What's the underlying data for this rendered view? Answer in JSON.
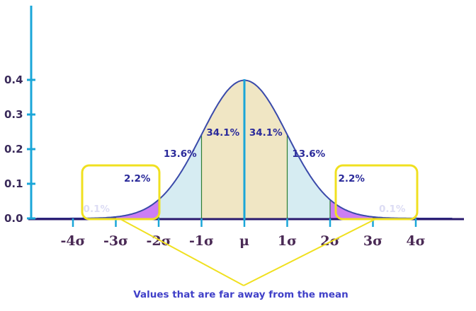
{
  "chart_data": {
    "type": "area",
    "title": "",
    "xlabel": "",
    "ylabel": "",
    "mean": 0,
    "sd": 1,
    "xlim": [
      -4.85,
      4.85
    ],
    "ylim": [
      0,
      0.4
    ],
    "y_ticks": [
      {
        "value": 0.4,
        "label": "0.4"
      },
      {
        "value": 0.3,
        "label": "0.3"
      },
      {
        "value": 0.2,
        "label": "0.2"
      },
      {
        "value": 0.1,
        "label": "0.1"
      },
      {
        "value": 0.0,
        "label": "0.0"
      }
    ],
    "x_ticks": [
      {
        "value": -4,
        "label": "-4σ"
      },
      {
        "value": -3,
        "label": "-3σ"
      },
      {
        "value": -2,
        "label": "-2σ"
      },
      {
        "value": -1,
        "label": "-1σ"
      },
      {
        "value": 0,
        "label": "μ"
      },
      {
        "value": 1,
        "label": "1σ"
      },
      {
        "value": 2,
        "label": "2σ"
      },
      {
        "value": 3,
        "label": "3σ"
      },
      {
        "value": 4,
        "label": "4σ"
      }
    ],
    "regions": [
      {
        "from": -4.85,
        "to": -3,
        "label": "0.1%",
        "value": 0.1,
        "color": "#5a1a6e"
      },
      {
        "from": -3,
        "to": -2,
        "label": "2.2%",
        "value": 2.2,
        "color": "#cc7ef4"
      },
      {
        "from": -2,
        "to": -1,
        "label": "13.6%",
        "value": 13.6,
        "color": "#d6ecf2"
      },
      {
        "from": -1,
        "to": 0,
        "label": "34.1%",
        "value": 34.1,
        "color": "#f0e6c4"
      },
      {
        "from": 0,
        "to": 1,
        "label": "34.1%",
        "value": 34.1,
        "color": "#f0e6c4"
      },
      {
        "from": 1,
        "to": 2,
        "label": "13.6%",
        "value": 13.6,
        "color": "#d6ecf2"
      },
      {
        "from": 2,
        "to": 3,
        "label": "2.2%",
        "value": 2.2,
        "color": "#cc7ef4"
      },
      {
        "from": 3,
        "to": 4.85,
        "label": "0.1%",
        "value": 0.1,
        "color": "#5a1a6e"
      }
    ],
    "annotation": "Values that are far away from the mean",
    "colors": {
      "axis": "#1aa6d8",
      "baseline": "#2a1a6e",
      "curve": "#3a4aaa",
      "divider": "#2e7d32",
      "highlight": "#f0e020",
      "annotation_text": "#4040c8"
    }
  }
}
